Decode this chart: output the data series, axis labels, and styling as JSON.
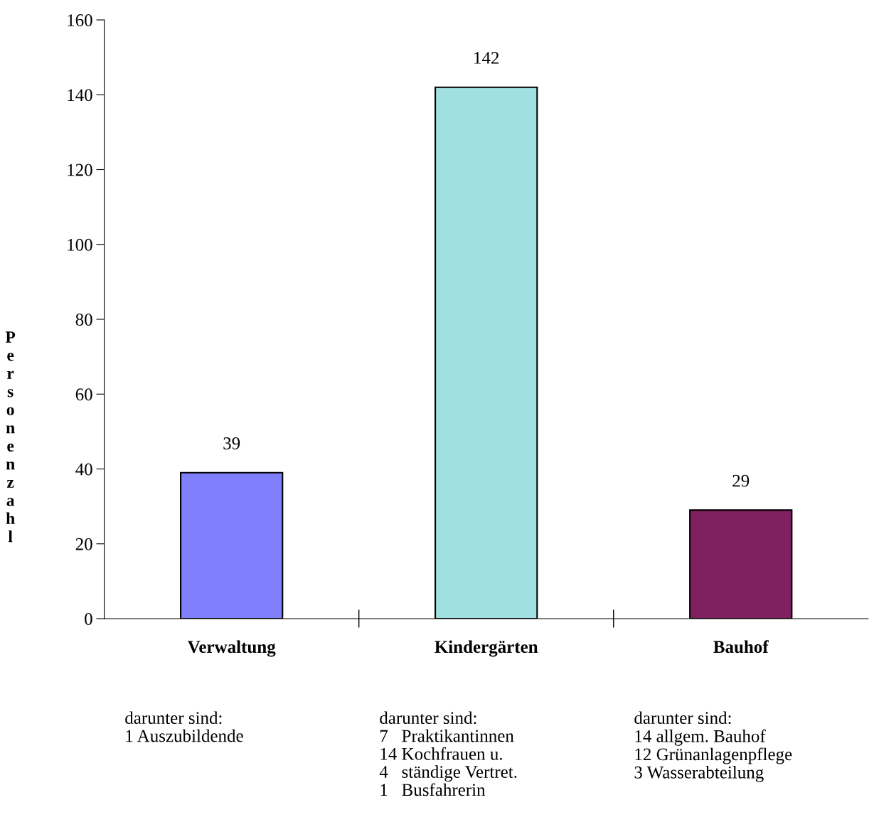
{
  "chart_data": {
    "type": "bar",
    "ylabel": "Personenzahl",
    "categories": [
      "Verwaltung",
      "Kindergärten",
      "Bauhof"
    ],
    "values": [
      39,
      142,
      29
    ],
    "colors": [
      "#8080ff",
      "#a0e0e0",
      "#802060"
    ],
    "ylim": [
      0,
      160
    ],
    "yticks": [
      0,
      20,
      40,
      60,
      80,
      100,
      120,
      140,
      160
    ],
    "data_labels": true,
    "grid": false,
    "legend": false,
    "annotations": [
      "darunter sind:\n1 Auszubildende",
      "darunter sind:\n7   Praktikantinnen\n14 Kochfrauen u.\n4   ständige Vertret.\n1   Busfahrerin",
      "darunter sind:\n14 allgem. Bauhof\n12 Grünanlagenpflege\n3 Wasserabteilung"
    ]
  }
}
